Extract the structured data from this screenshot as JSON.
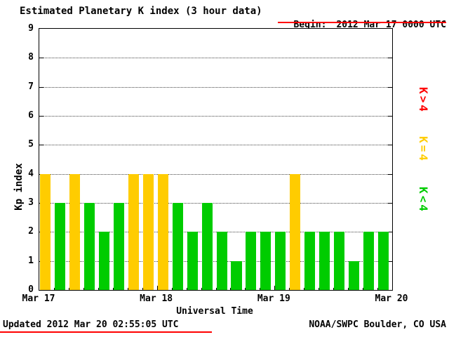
{
  "chart_data": {
    "type": "bar",
    "title": "Estimated Planetary K index (3 hour data)",
    "begin": {
      "label": "Begin:",
      "value": "2012 Mar 17 0000 UTC"
    },
    "xlabel": "Universal Time",
    "ylabel": "Kp index",
    "ylim": [
      0,
      9
    ],
    "yticks": [
      0,
      1,
      2,
      3,
      4,
      5,
      6,
      7,
      8,
      9
    ],
    "x_day_labels": [
      "Mar 17",
      "Mar 18",
      "Mar 19",
      "Mar 20"
    ],
    "bar_interval_hours": 3,
    "values": [
      4,
      3,
      4,
      3,
      2,
      3,
      4,
      4,
      4,
      3,
      2,
      3,
      2,
      1,
      2,
      2,
      2,
      4,
      2,
      2,
      2,
      1,
      2,
      2
    ],
    "colors": {
      "below4": "#00cc00",
      "equal4": "#ffcc00",
      "above4": "#ff0000",
      "rule_line": "#ff0000"
    },
    "legend": [
      {
        "label": "K>4",
        "color": "#ff0000"
      },
      {
        "label": "K=4",
        "color": "#ffcc00"
      },
      {
        "label": "K<4",
        "color": "#00cc00"
      }
    ],
    "grid": "horizontal-dotted",
    "footer": {
      "updated": "Updated 2012 Mar 20 02:55:05 UTC",
      "source": "NOAA/SWPC Boulder, CO USA"
    }
  }
}
